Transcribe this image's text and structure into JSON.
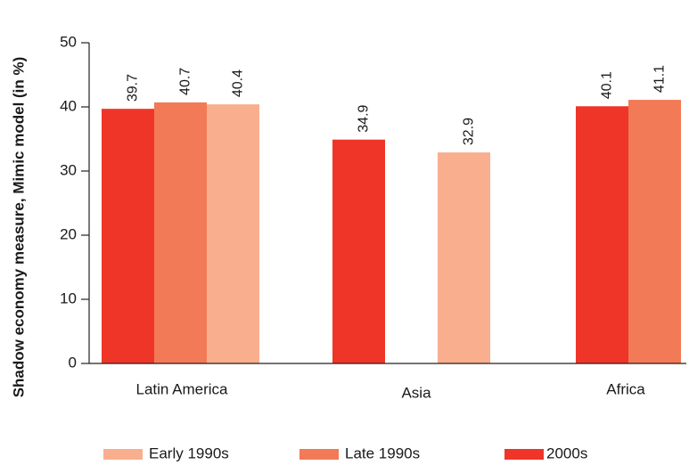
{
  "chart_data": {
    "type": "bar",
    "title": "",
    "xlabel": "",
    "ylabel": "Shadow economy measure, Mimic model (in %)",
    "ylim": [
      0,
      50
    ],
    "yticks": [
      0,
      10,
      20,
      30,
      40,
      50
    ],
    "grid": false,
    "legend_position": "bottom",
    "groups": [
      {
        "category": "Latin America",
        "bars": [
          {
            "series": "2000s",
            "value": 39.7,
            "label": "39.7"
          },
          {
            "series": "Late 1990s",
            "value": 40.7,
            "label": "40.7"
          },
          {
            "series": "Early 1990s",
            "value": 40.4,
            "label": "40.4"
          }
        ]
      },
      {
        "category": "Asia",
        "bars": [
          {
            "series": "2000s",
            "value": 34.9,
            "label": "34.9"
          },
          {
            "series": "Early 1990s",
            "value": 32.9,
            "label": "32.9"
          }
        ]
      },
      {
        "category": "Africa",
        "bars": [
          {
            "series": "2000s",
            "value": 40.1,
            "label": "40.1"
          },
          {
            "series": "Late 1990s",
            "value": 41.1,
            "label": "41.1"
          }
        ]
      }
    ],
    "legend": [
      {
        "name": "Early 1990s",
        "color": "#f9ae8e"
      },
      {
        "name": "Late 1990s",
        "color": "#f27a56"
      },
      {
        "name": "2000s",
        "color": "#ee3528"
      }
    ]
  }
}
